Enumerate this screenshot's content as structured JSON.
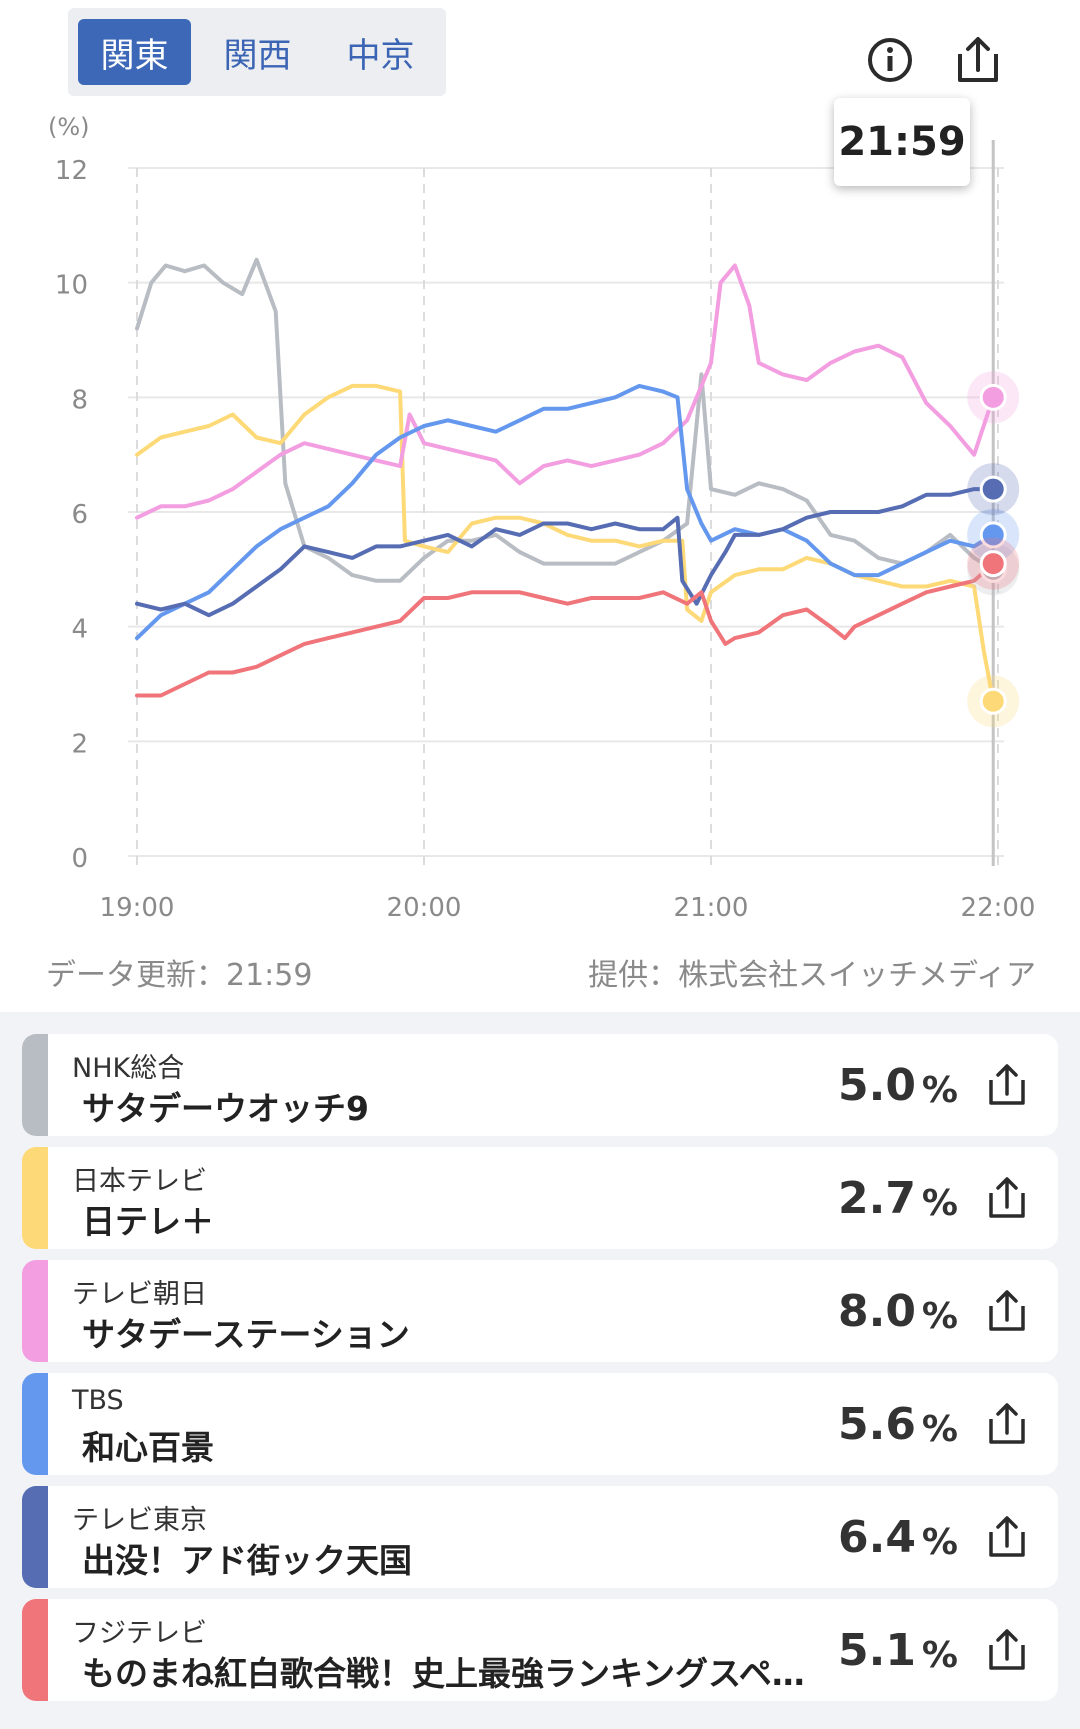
{
  "region_tabs": [
    {
      "label": "関東",
      "active": true
    },
    {
      "label": "関西",
      "active": false
    },
    {
      "label": "中京",
      "active": false
    }
  ],
  "header": {
    "info_icon": "info-circle-icon",
    "share_icon": "share-icon"
  },
  "tooltip": {
    "time": "21:59"
  },
  "chart_data": {
    "type": "line",
    "y_unit_label": "(%)",
    "y_ticks": [
      0,
      2,
      4,
      6,
      8,
      10,
      12
    ],
    "ylim": [
      0,
      12
    ],
    "x_ticks": [
      "19:00",
      "20:00",
      "21:00",
      "22:00"
    ],
    "xlim": [
      "19:00",
      "22:00"
    ],
    "grid": true,
    "marker_time": "21:59",
    "series": [
      {
        "name": "NHK総合",
        "color": "#b8bcc3",
        "points": [
          [
            "19:00",
            9.2
          ],
          [
            "19:03",
            10.0
          ],
          [
            "19:06",
            10.3
          ],
          [
            "19:10",
            10.2
          ],
          [
            "19:14",
            10.3
          ],
          [
            "19:18",
            10.0
          ],
          [
            "19:22",
            9.8
          ],
          [
            "19:25",
            10.4
          ],
          [
            "19:29",
            9.5
          ],
          [
            "19:31",
            6.5
          ],
          [
            "19:35",
            5.4
          ],
          [
            "19:40",
            5.2
          ],
          [
            "19:45",
            4.9
          ],
          [
            "19:50",
            4.8
          ],
          [
            "19:55",
            4.8
          ],
          [
            "20:00",
            5.2
          ],
          [
            "20:05",
            5.5
          ],
          [
            "20:10",
            5.5
          ],
          [
            "20:15",
            5.6
          ],
          [
            "20:20",
            5.3
          ],
          [
            "20:25",
            5.1
          ],
          [
            "20:30",
            5.1
          ],
          [
            "20:35",
            5.1
          ],
          [
            "20:40",
            5.1
          ],
          [
            "20:45",
            5.3
          ],
          [
            "20:50",
            5.5
          ],
          [
            "20:55",
            5.8
          ],
          [
            "20:58",
            8.4
          ],
          [
            "21:00",
            6.4
          ],
          [
            "21:05",
            6.3
          ],
          [
            "21:10",
            6.5
          ],
          [
            "21:15",
            6.4
          ],
          [
            "21:20",
            6.2
          ],
          [
            "21:25",
            5.6
          ],
          [
            "21:30",
            5.5
          ],
          [
            "21:35",
            5.2
          ],
          [
            "21:40",
            5.1
          ],
          [
            "21:45",
            5.3
          ],
          [
            "21:50",
            5.6
          ],
          [
            "21:55",
            5.2
          ],
          [
            "21:59",
            5.0
          ]
        ]
      },
      {
        "name": "日本テレビ",
        "color": "#fdd977",
        "points": [
          [
            "19:00",
            7.0
          ],
          [
            "19:05",
            7.3
          ],
          [
            "19:10",
            7.4
          ],
          [
            "19:15",
            7.5
          ],
          [
            "19:20",
            7.7
          ],
          [
            "19:25",
            7.3
          ],
          [
            "19:30",
            7.2
          ],
          [
            "19:35",
            7.7
          ],
          [
            "19:40",
            8.0
          ],
          [
            "19:45",
            8.2
          ],
          [
            "19:50",
            8.2
          ],
          [
            "19:55",
            8.1
          ],
          [
            "19:56",
            5.5
          ],
          [
            "20:00",
            5.4
          ],
          [
            "20:05",
            5.3
          ],
          [
            "20:10",
            5.8
          ],
          [
            "20:15",
            5.9
          ],
          [
            "20:20",
            5.9
          ],
          [
            "20:25",
            5.8
          ],
          [
            "20:30",
            5.6
          ],
          [
            "20:35",
            5.5
          ],
          [
            "20:40",
            5.5
          ],
          [
            "20:45",
            5.4
          ],
          [
            "20:50",
            5.5
          ],
          [
            "20:54",
            5.5
          ],
          [
            "20:55",
            4.3
          ],
          [
            "20:58",
            4.1
          ],
          [
            "21:00",
            4.6
          ],
          [
            "21:05",
            4.9
          ],
          [
            "21:10",
            5.0
          ],
          [
            "21:15",
            5.0
          ],
          [
            "21:20",
            5.2
          ],
          [
            "21:25",
            5.1
          ],
          [
            "21:30",
            4.9
          ],
          [
            "21:35",
            4.8
          ],
          [
            "21:40",
            4.7
          ],
          [
            "21:45",
            4.7
          ],
          [
            "21:50",
            4.8
          ],
          [
            "21:55",
            4.7
          ],
          [
            "21:57",
            3.6
          ],
          [
            "21:59",
            2.7
          ]
        ]
      },
      {
        "name": "テレビ朝日",
        "color": "#f39ee0",
        "points": [
          [
            "19:00",
            5.9
          ],
          [
            "19:05",
            6.1
          ],
          [
            "19:10",
            6.1
          ],
          [
            "19:15",
            6.2
          ],
          [
            "19:20",
            6.4
          ],
          [
            "19:25",
            6.7
          ],
          [
            "19:30",
            7.0
          ],
          [
            "19:35",
            7.2
          ],
          [
            "19:40",
            7.1
          ],
          [
            "19:45",
            7.0
          ],
          [
            "19:50",
            6.9
          ],
          [
            "19:55",
            6.8
          ],
          [
            "19:57",
            7.7
          ],
          [
            "20:00",
            7.2
          ],
          [
            "20:05",
            7.1
          ],
          [
            "20:10",
            7.0
          ],
          [
            "20:15",
            6.9
          ],
          [
            "20:20",
            6.5
          ],
          [
            "20:25",
            6.8
          ],
          [
            "20:30",
            6.9
          ],
          [
            "20:35",
            6.8
          ],
          [
            "20:40",
            6.9
          ],
          [
            "20:45",
            7.0
          ],
          [
            "20:50",
            7.2
          ],
          [
            "20:55",
            7.6
          ],
          [
            "21:00",
            8.6
          ],
          [
            "21:02",
            10.0
          ],
          [
            "21:05",
            10.3
          ],
          [
            "21:08",
            9.6
          ],
          [
            "21:10",
            8.6
          ],
          [
            "21:15",
            8.4
          ],
          [
            "21:20",
            8.3
          ],
          [
            "21:25",
            8.6
          ],
          [
            "21:30",
            8.8
          ],
          [
            "21:35",
            8.9
          ],
          [
            "21:40",
            8.7
          ],
          [
            "21:45",
            7.9
          ],
          [
            "21:50",
            7.5
          ],
          [
            "21:55",
            7.0
          ],
          [
            "21:59",
            8.0
          ]
        ]
      },
      {
        "name": "TBS",
        "color": "#6497ee",
        "points": [
          [
            "19:00",
            3.8
          ],
          [
            "19:05",
            4.2
          ],
          [
            "19:10",
            4.4
          ],
          [
            "19:15",
            4.6
          ],
          [
            "19:20",
            5.0
          ],
          [
            "19:25",
            5.4
          ],
          [
            "19:30",
            5.7
          ],
          [
            "19:35",
            5.9
          ],
          [
            "19:40",
            6.1
          ],
          [
            "19:45",
            6.5
          ],
          [
            "19:50",
            7.0
          ],
          [
            "19:55",
            7.3
          ],
          [
            "20:00",
            7.5
          ],
          [
            "20:05",
            7.6
          ],
          [
            "20:10",
            7.5
          ],
          [
            "20:15",
            7.4
          ],
          [
            "20:20",
            7.6
          ],
          [
            "20:25",
            7.8
          ],
          [
            "20:30",
            7.8
          ],
          [
            "20:35",
            7.9
          ],
          [
            "20:40",
            8.0
          ],
          [
            "20:45",
            8.2
          ],
          [
            "20:50",
            8.1
          ],
          [
            "20:53",
            8.0
          ],
          [
            "20:55",
            6.4
          ],
          [
            "20:58",
            5.8
          ],
          [
            "21:00",
            5.5
          ],
          [
            "21:05",
            5.7
          ],
          [
            "21:10",
            5.6
          ],
          [
            "21:15",
            5.7
          ],
          [
            "21:20",
            5.5
          ],
          [
            "21:25",
            5.1
          ],
          [
            "21:30",
            4.9
          ],
          [
            "21:35",
            4.9
          ],
          [
            "21:40",
            5.1
          ],
          [
            "21:45",
            5.3
          ],
          [
            "21:50",
            5.5
          ],
          [
            "21:55",
            5.4
          ],
          [
            "21:59",
            5.6
          ]
        ]
      },
      {
        "name": "テレビ東京",
        "color": "#566cb3",
        "points": [
          [
            "19:00",
            4.4
          ],
          [
            "19:05",
            4.3
          ],
          [
            "19:10",
            4.4
          ],
          [
            "19:15",
            4.2
          ],
          [
            "19:20",
            4.4
          ],
          [
            "19:25",
            4.7
          ],
          [
            "19:30",
            5.0
          ],
          [
            "19:35",
            5.4
          ],
          [
            "19:40",
            5.3
          ],
          [
            "19:45",
            5.2
          ],
          [
            "19:50",
            5.4
          ],
          [
            "19:55",
            5.4
          ],
          [
            "20:00",
            5.5
          ],
          [
            "20:05",
            5.6
          ],
          [
            "20:10",
            5.4
          ],
          [
            "20:15",
            5.7
          ],
          [
            "20:20",
            5.6
          ],
          [
            "20:25",
            5.8
          ],
          [
            "20:30",
            5.8
          ],
          [
            "20:35",
            5.7
          ],
          [
            "20:40",
            5.8
          ],
          [
            "20:45",
            5.7
          ],
          [
            "20:50",
            5.7
          ],
          [
            "20:53",
            5.9
          ],
          [
            "20:54",
            4.8
          ],
          [
            "20:57",
            4.4
          ],
          [
            "21:00",
            4.9
          ],
          [
            "21:03",
            5.3
          ],
          [
            "21:05",
            5.6
          ],
          [
            "21:10",
            5.6
          ],
          [
            "21:15",
            5.7
          ],
          [
            "21:20",
            5.9
          ],
          [
            "21:25",
            6.0
          ],
          [
            "21:30",
            6.0
          ],
          [
            "21:35",
            6.0
          ],
          [
            "21:40",
            6.1
          ],
          [
            "21:45",
            6.3
          ],
          [
            "21:50",
            6.3
          ],
          [
            "21:55",
            6.4
          ],
          [
            "21:59",
            6.4
          ]
        ]
      },
      {
        "name": "フジテレビ",
        "color": "#f0757a",
        "points": [
          [
            "19:00",
            2.8
          ],
          [
            "19:05",
            2.8
          ],
          [
            "19:10",
            3.0
          ],
          [
            "19:15",
            3.2
          ],
          [
            "19:20",
            3.2
          ],
          [
            "19:25",
            3.3
          ],
          [
            "19:30",
            3.5
          ],
          [
            "19:35",
            3.7
          ],
          [
            "19:40",
            3.8
          ],
          [
            "19:45",
            3.9
          ],
          [
            "19:50",
            4.0
          ],
          [
            "19:55",
            4.1
          ],
          [
            "20:00",
            4.5
          ],
          [
            "20:05",
            4.5
          ],
          [
            "20:10",
            4.6
          ],
          [
            "20:15",
            4.6
          ],
          [
            "20:20",
            4.6
          ],
          [
            "20:25",
            4.5
          ],
          [
            "20:30",
            4.4
          ],
          [
            "20:35",
            4.5
          ],
          [
            "20:40",
            4.5
          ],
          [
            "20:45",
            4.5
          ],
          [
            "20:50",
            4.6
          ],
          [
            "20:55",
            4.4
          ],
          [
            "20:58",
            4.6
          ],
          [
            "21:00",
            4.1
          ],
          [
            "21:03",
            3.7
          ],
          [
            "21:05",
            3.8
          ],
          [
            "21:10",
            3.9
          ],
          [
            "21:15",
            4.2
          ],
          [
            "21:20",
            4.3
          ],
          [
            "21:25",
            4.0
          ],
          [
            "21:28",
            3.8
          ],
          [
            "21:30",
            4.0
          ],
          [
            "21:35",
            4.2
          ],
          [
            "21:40",
            4.4
          ],
          [
            "21:45",
            4.6
          ],
          [
            "21:50",
            4.7
          ],
          [
            "21:55",
            4.8
          ],
          [
            "21:59",
            5.1
          ]
        ]
      }
    ]
  },
  "footer": {
    "updated": "データ更新：21:59",
    "provider": "提供：株式会社スイッチメディア"
  },
  "channels": [
    {
      "channel": "NHK総合",
      "program": "サタデーウオッチ9",
      "rating": "5.0",
      "unit": "%",
      "color": "#b8bcc3"
    },
    {
      "channel": "日本テレビ",
      "program": "日テレ＋",
      "rating": "2.7",
      "unit": "%",
      "color": "#fdd977"
    },
    {
      "channel": "テレビ朝日",
      "program": "サタデーステーション",
      "rating": "8.0",
      "unit": "%",
      "color": "#f39ee0"
    },
    {
      "channel": "TBS",
      "program": "和心百景",
      "rating": "5.6",
      "unit": "%",
      "color": "#6497ee"
    },
    {
      "channel": "テレビ東京",
      "program": "出没！アド街ック天国",
      "rating": "6.4",
      "unit": "%",
      "color": "#566cb3"
    },
    {
      "channel": "フジテレビ",
      "program": "ものまね紅白歌合戦！史上最強ランキングスペ…",
      "rating": "5.1",
      "unit": "%",
      "color": "#f0757a"
    }
  ]
}
